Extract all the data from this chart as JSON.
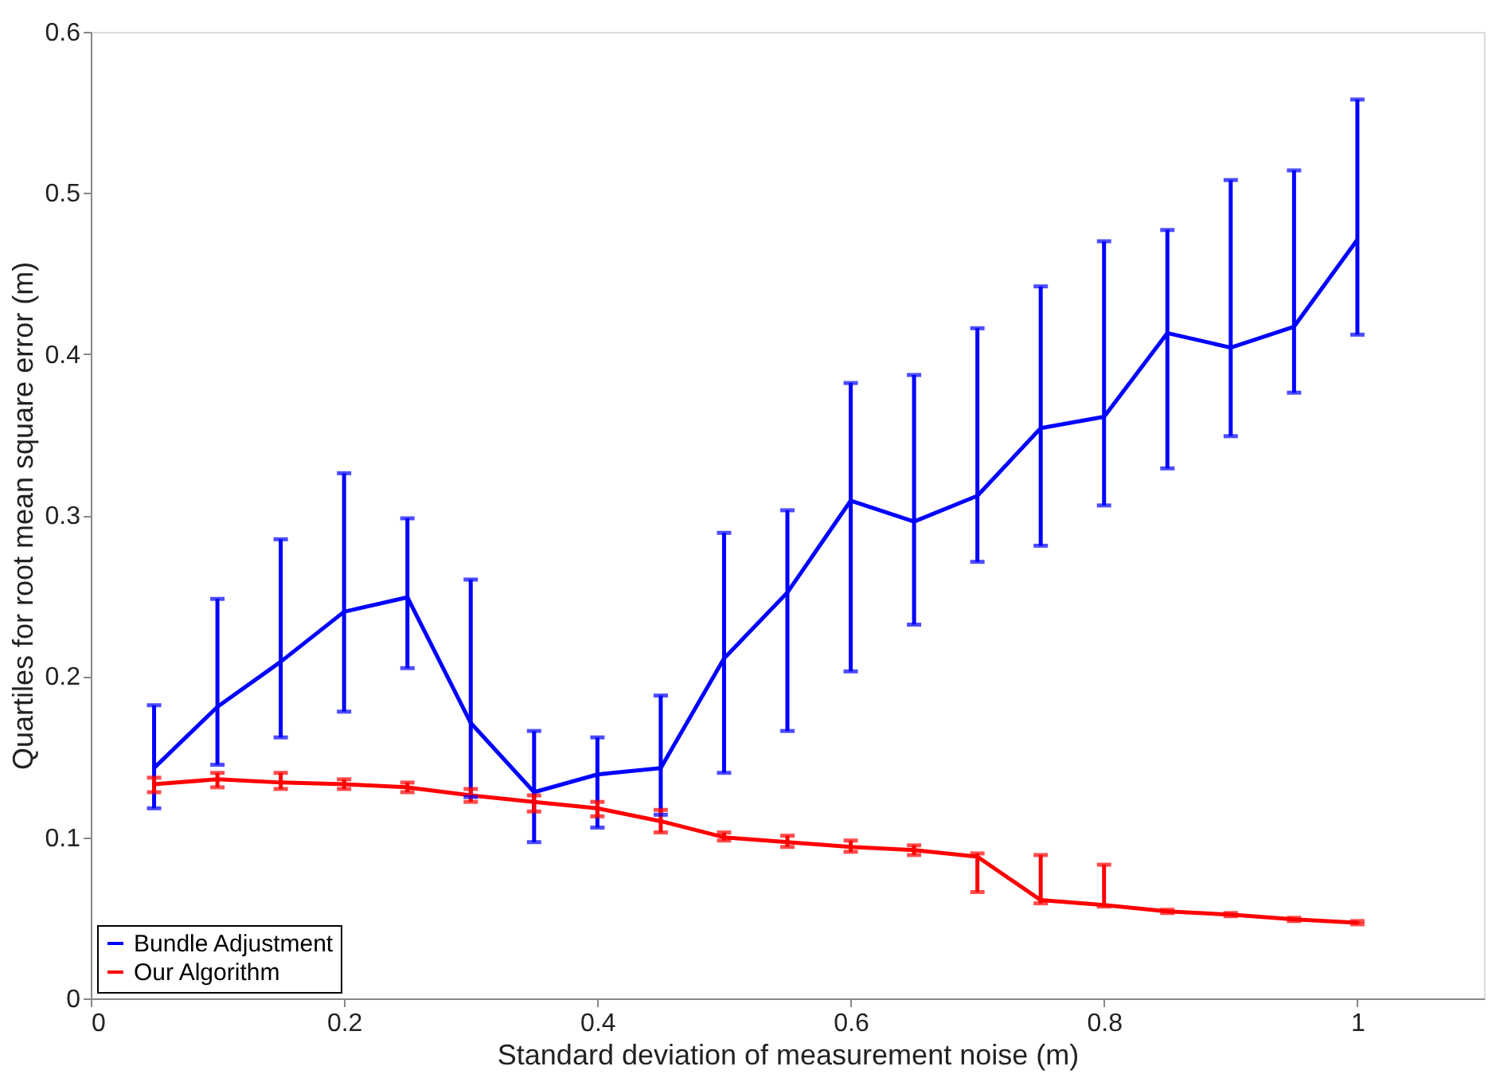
{
  "chart_data": {
    "type": "line",
    "xlabel": "Standard deviation of measurement noise (m)",
    "ylabel": "Quartiles for root mean square error (m)",
    "x": [
      0.05,
      0.1,
      0.15,
      0.2,
      0.25,
      0.3,
      0.35,
      0.4,
      0.45,
      0.5,
      0.55,
      0.6,
      0.65,
      0.7,
      0.75,
      0.8,
      0.85,
      0.9,
      0.95,
      1.0
    ],
    "series": [
      {
        "name": "Bundle Adjustment",
        "color": "#0000ff",
        "values": [
          0.143,
          0.181,
          0.209,
          0.24,
          0.249,
          0.171,
          0.128,
          0.139,
          0.143,
          0.211,
          0.252,
          0.309,
          0.296,
          0.312,
          0.354,
          0.361,
          0.413,
          0.404,
          0.417,
          0.471
        ],
        "errors": [
          [
            0.118,
            0.182
          ],
          [
            0.145,
            0.248
          ],
          [
            0.162,
            0.285
          ],
          [
            0.178,
            0.326
          ],
          [
            0.205,
            0.298
          ],
          [
            0.125,
            0.26
          ],
          [
            0.097,
            0.166
          ],
          [
            0.106,
            0.162
          ],
          [
            0.114,
            0.188
          ],
          [
            0.14,
            0.289
          ],
          [
            0.166,
            0.303
          ],
          [
            0.203,
            0.382
          ],
          [
            0.232,
            0.387
          ],
          [
            0.271,
            0.416
          ],
          [
            0.281,
            0.442
          ],
          [
            0.306,
            0.47
          ],
          [
            0.329,
            0.477
          ],
          [
            0.349,
            0.508
          ],
          [
            0.376,
            0.514
          ],
          [
            0.412,
            0.558
          ]
        ]
      },
      {
        "name": "Our Algorithm",
        "color": "#ff0000",
        "values": [
          0.133,
          0.136,
          0.134,
          0.133,
          0.131,
          0.126,
          0.122,
          0.118,
          0.11,
          0.1,
          0.097,
          0.094,
          0.092,
          0.088,
          0.061,
          0.058,
          0.054,
          0.052,
          0.049,
          0.047
        ],
        "errors": [
          [
            0.128,
            0.137
          ],
          [
            0.131,
            0.14
          ],
          [
            0.13,
            0.14
          ],
          [
            0.13,
            0.136
          ],
          [
            0.128,
            0.134
          ],
          [
            0.122,
            0.13
          ],
          [
            0.116,
            0.126
          ],
          [
            0.113,
            0.122
          ],
          [
            0.103,
            0.117
          ],
          [
            0.098,
            0.103
          ],
          [
            0.094,
            0.101
          ],
          [
            0.091,
            0.098
          ],
          [
            0.089,
            0.095
          ],
          [
            0.066,
            0.09
          ],
          [
            0.059,
            0.089
          ],
          [
            0.057,
            0.083
          ],
          [
            0.053,
            0.055
          ],
          [
            0.051,
            0.053
          ],
          [
            0.048,
            0.05
          ],
          [
            0.046,
            0.048
          ]
        ]
      }
    ],
    "xlim": [
      0,
      1.1
    ],
    "xticks": [
      0,
      0.2,
      0.4,
      0.6,
      0.8,
      1
    ],
    "ylim": [
      0,
      0.6
    ],
    "yticks": [
      0,
      0.1,
      0.2,
      0.3,
      0.4,
      0.5,
      0.6
    ],
    "grid": false,
    "legend": "bottom left",
    "marker": "none",
    "line_style": "solid"
  }
}
